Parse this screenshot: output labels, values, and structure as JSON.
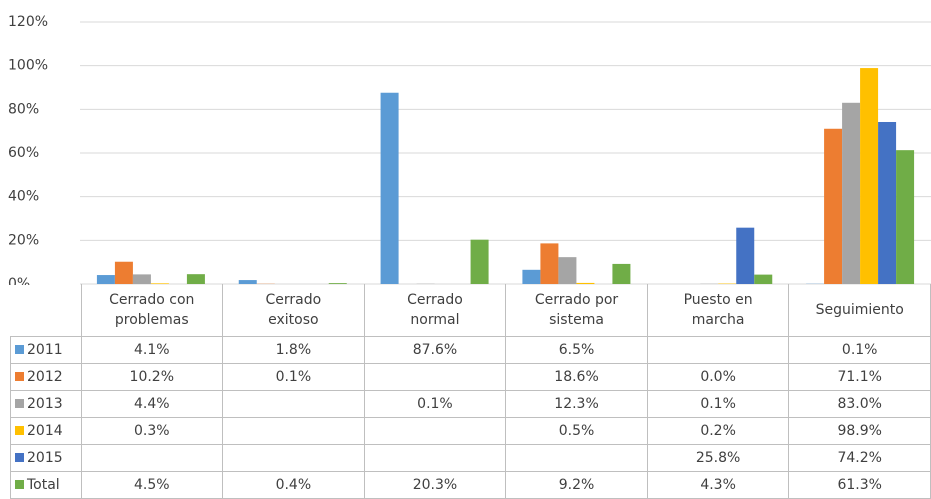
{
  "chart_data": {
    "type": "bar",
    "categories": [
      "Cerrado con\nproblemas",
      "Cerrado\nexitoso",
      "Cerrado\nnormal",
      "Cerrado por\nsistema",
      "Puesto en\nmarcha",
      "Seguimiento"
    ],
    "series": [
      {
        "name": "2011",
        "color": "#5b9bd5",
        "values": [
          4.1,
          1.8,
          87.6,
          6.5,
          null,
          0.1
        ],
        "value_labels": [
          "4.1%",
          "1.8%",
          "87.6%",
          "6.5%",
          null,
          "0.1%"
        ]
      },
      {
        "name": "2012",
        "color": "#ed7d31",
        "values": [
          10.2,
          0.1,
          null,
          18.6,
          0.0,
          71.1
        ],
        "value_labels": [
          "10.2%",
          "0.1%",
          null,
          "18.6%",
          "0.0%",
          "71.1%"
        ]
      },
      {
        "name": "2013",
        "color": "#a5a5a5",
        "values": [
          4.4,
          null,
          0.1,
          12.3,
          0.1,
          83.0
        ],
        "value_labels": [
          "4.4%",
          null,
          "0.1%",
          "12.3%",
          "0.1%",
          "83.0%"
        ]
      },
      {
        "name": "2014",
        "color": "#ffc000",
        "values": [
          0.3,
          null,
          null,
          0.5,
          0.2,
          98.9
        ],
        "value_labels": [
          "0.3%",
          null,
          null,
          "0.5%",
          "0.2%",
          "98.9%"
        ]
      },
      {
        "name": "2015",
        "color": "#4472c4",
        "values": [
          null,
          null,
          null,
          null,
          25.8,
          74.2
        ],
        "value_labels": [
          null,
          null,
          null,
          null,
          "25.8%",
          "74.2%"
        ]
      },
      {
        "name": "Total",
        "color": "#70ad47",
        "values": [
          4.5,
          0.4,
          20.3,
          9.2,
          4.3,
          61.3
        ],
        "value_labels": [
          "4.5%",
          "0.4%",
          "20.3%",
          "9.2%",
          "4.3%",
          "61.3%"
        ]
      }
    ],
    "ylim": [
      0,
      120
    ],
    "yticks": [
      {
        "value": 0,
        "label": "0%"
      },
      {
        "value": 20,
        "label": "20%"
      },
      {
        "value": 40,
        "label": "40%"
      },
      {
        "value": 60,
        "label": "60%"
      },
      {
        "value": 80,
        "label": "80%"
      },
      {
        "value": 100,
        "label": "100%"
      },
      {
        "value": 120,
        "label": "120%"
      }
    ],
    "grid": true
  }
}
